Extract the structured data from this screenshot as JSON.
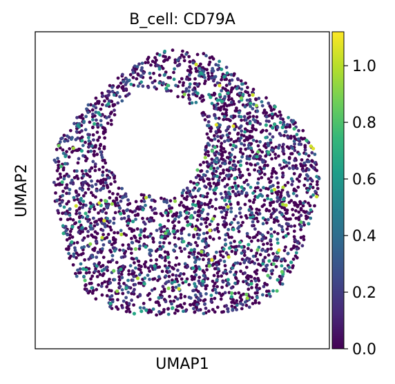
{
  "chart_data": {
    "type": "scatter",
    "title": "B_cell: CD79A",
    "xlabel": "UMAP1",
    "ylabel": "UMAP2",
    "x_ticks": [],
    "y_ticks": [],
    "grid": false,
    "legend": "none",
    "colorbar": {
      "label": "",
      "range": [
        0.0,
        1.12
      ],
      "ticks": [
        0.0,
        0.2,
        0.4,
        0.6,
        0.8,
        1.0
      ],
      "tick_labels": [
        "0.0",
        "0.2",
        "0.4",
        "0.6",
        "0.8",
        "1.0"
      ],
      "colormap": "viridis",
      "colormap_stops": [
        "#440154",
        "#482878",
        "#3e4989",
        "#31688e",
        "#26828e",
        "#1f9e89",
        "#35b779",
        "#6ece58",
        "#b5de2b",
        "#fde725"
      ]
    },
    "xlim": [
      -1.0,
      1.0
    ],
    "ylim": [
      -1.0,
      1.0
    ],
    "point_cloud": {
      "shape": "ring",
      "n_points": 3000,
      "center": [
        0.01,
        0.0
      ],
      "outer_radius": 0.9,
      "hole_center": [
        -0.18,
        0.3
      ],
      "hole_radius": 0.34,
      "value_distribution": "mostly 0.0, some 0.1-0.6, rare 0.7-1.1"
    }
  }
}
